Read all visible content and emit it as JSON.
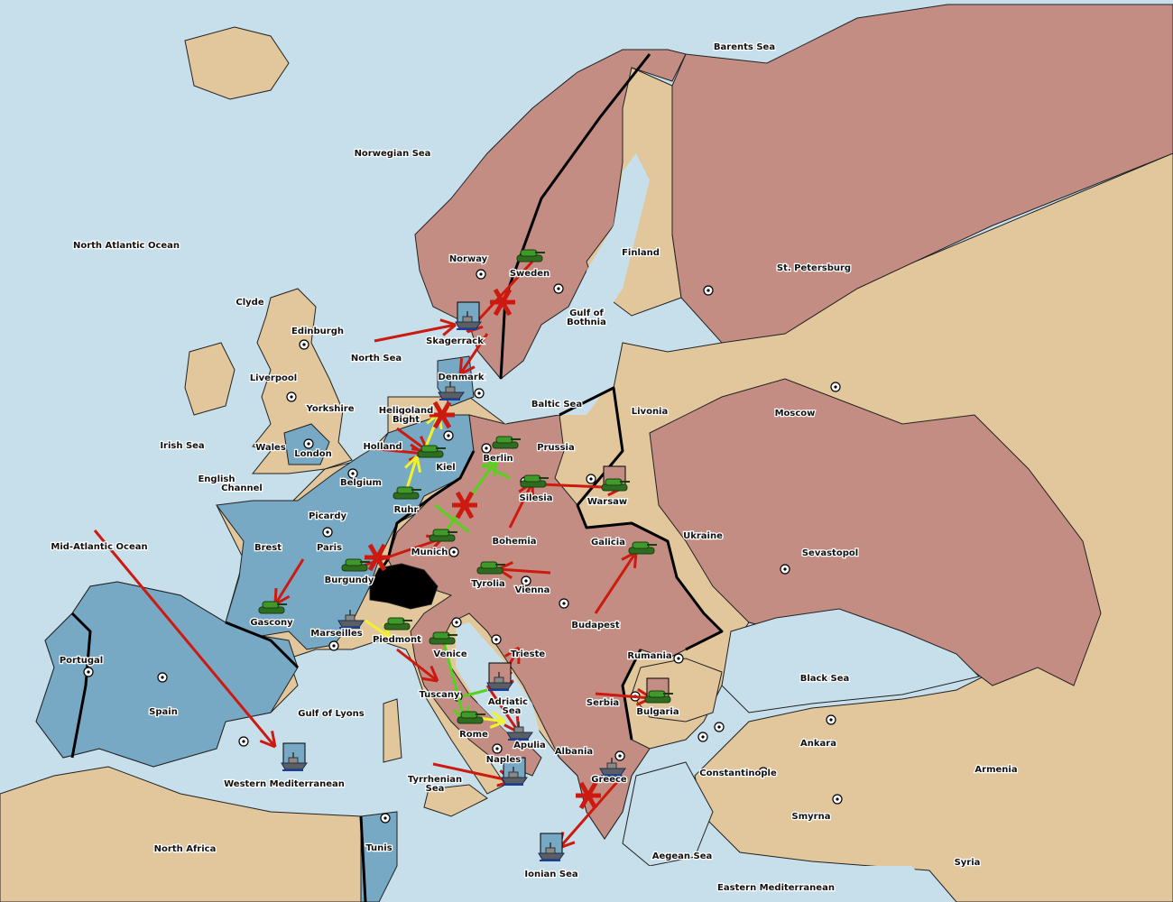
{
  "colors": {
    "sea": "#c6dfea",
    "neutral_land": "#e2c79c",
    "power_blue": "#77a9c5",
    "power_pink": "#c48d84",
    "impassable": "#000000",
    "order_failed": "#cc1a10",
    "order_support": "#f2f22a",
    "order_convoy_move": "#55d21c",
    "army": "#3f9a2a",
    "fleet": "#5a5f66"
  },
  "labels": [
    "Barents Sea",
    "Norwegian Sea",
    "North Atlantic Ocean",
    "Finland",
    "St. Petersburg",
    "Norway",
    "Sweden",
    "Clyde",
    "Gulf of",
    "Bothnia",
    "Edinburgh",
    "Skagerrack",
    "North Sea",
    "Liverpool",
    "Denmark",
    "Baltic Sea",
    "Moscow",
    "Livonia",
    "Yorkshire",
    "Heligoland",
    "Bight",
    "Irish Sea",
    "Wales",
    "Holland",
    "Prussia",
    "London",
    "Kiel",
    "Berlin",
    "English",
    "Channel",
    "Belgium",
    "Silesia",
    "Warsaw",
    "Ruhr",
    "Picardy",
    "Ukraine",
    "Brest",
    "Paris",
    "Mid-Atlantic Ocean",
    "Bohemia",
    "Galicia",
    "Munich",
    "Sevastopol",
    "Burgundy",
    "Tyrolia",
    "Vienna",
    "Gascony",
    "Budapest",
    "Marseilles",
    "Piedmont",
    "Venice",
    "Trieste",
    "Rumania",
    "Portugal",
    "Black Sea",
    "Tuscany",
    "Adriatic",
    "Sea",
    "Serbia",
    "Bulgaria",
    "Spain",
    "Gulf of Lyons",
    "Rome",
    "Apulia",
    "Ankara",
    "Albania",
    "Naples",
    "Armenia",
    "Constantinople",
    "Western Mediterranean",
    "Tyrrhenian",
    "Sea",
    "Greece",
    "Smyrna",
    "North Africa",
    "Tunis",
    "Aegean Sea",
    "Syria",
    "Ionian Sea",
    "Eastern Mediterranean"
  ],
  "units": [
    {
      "type": "army",
      "province": "Sweden",
      "icon": "tank-icon"
    },
    {
      "type": "army",
      "province": "Berlin",
      "icon": "tank-icon"
    },
    {
      "type": "army",
      "province": "Kiel",
      "icon": "tank-icon"
    },
    {
      "type": "army",
      "province": "Ruhr",
      "icon": "tank-icon"
    },
    {
      "type": "army",
      "province": "Silesia",
      "icon": "tank-icon"
    },
    {
      "type": "army",
      "province": "Warsaw",
      "icon": "tank-icon"
    },
    {
      "type": "army",
      "province": "Munich",
      "icon": "tank-icon"
    },
    {
      "type": "army",
      "province": "Burgundy",
      "icon": "tank-icon"
    },
    {
      "type": "army",
      "province": "Tyrolia",
      "icon": "tank-icon"
    },
    {
      "type": "army",
      "province": "Galicia",
      "icon": "tank-icon"
    },
    {
      "type": "army",
      "province": "Gascony",
      "icon": "tank-icon"
    },
    {
      "type": "army",
      "province": "Piedmont",
      "icon": "tank-icon"
    },
    {
      "type": "army",
      "province": "Venice",
      "icon": "tank-icon"
    },
    {
      "type": "army",
      "province": "Rome",
      "icon": "tank-icon"
    },
    {
      "type": "army",
      "province": "Bulgaria",
      "icon": "tank-icon"
    },
    {
      "type": "fleet",
      "province": "Skagerrack",
      "icon": "battleship-icon"
    },
    {
      "type": "fleet",
      "province": "Denmark",
      "icon": "battleship-icon"
    },
    {
      "type": "fleet",
      "province": "Marseilles",
      "icon": "battleship-icon"
    },
    {
      "type": "fleet",
      "province": "Adriatic Sea",
      "icon": "battleship-icon"
    },
    {
      "type": "fleet",
      "province": "Apulia",
      "icon": "battleship-icon"
    },
    {
      "type": "fleet",
      "province": "Naples",
      "icon": "battleship-icon"
    },
    {
      "type": "fleet",
      "province": "Greece",
      "icon": "battleship-icon"
    },
    {
      "type": "fleet",
      "province": "Western Mediterranean",
      "icon": "battleship-icon"
    },
    {
      "type": "fleet",
      "province": "Ionian Sea",
      "icon": "battleship-icon"
    }
  ]
}
